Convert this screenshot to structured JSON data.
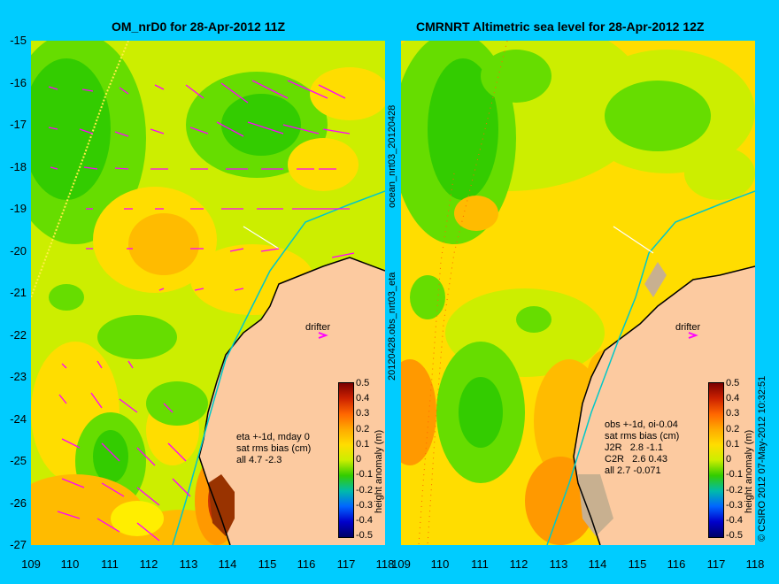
{
  "left_panel": {
    "title": "OM_nrD0 for 28-Apr-2012 11Z",
    "notes": [
      "eta +-1d, mday 0",
      "sat rms bias (cm)",
      "all 4.7 -2.3"
    ],
    "drifter_label": "drifter"
  },
  "right_panel": {
    "title": "CMRNRT Altimetric sea level  for 28-Apr-2012 12Z",
    "notes": [
      "obs +-1d, oi-0.04",
      "sat rms bias (cm)",
      "J2R   2.8 -1.1",
      "C2R   2.6 0.43",
      "all 2.7 -0.071"
    ],
    "drifter_label": "drifter"
  },
  "y_ticks": [
    "-15",
    "-16",
    "-17",
    "-18",
    "-19",
    "-20",
    "-21",
    "-22",
    "-23",
    "-24",
    "-25",
    "-26",
    "-27"
  ],
  "x_ticks_left": [
    "109",
    "110",
    "111",
    "112",
    "113",
    "114",
    "115",
    "116",
    "117",
    "118"
  ],
  "x_ticks_right": [
    "109",
    "110",
    "111",
    "112",
    "113",
    "114",
    "115",
    "116",
    "117",
    "118"
  ],
  "colorbar": {
    "title": "height anomaly (m)",
    "ticks": [
      "0.5",
      "0.4",
      "0.3",
      "0.2",
      "0.1",
      "0",
      "-0.1",
      "-0.2",
      "-0.3",
      "-0.4",
      "-0.5"
    ]
  },
  "side_labels": {
    "middle_top": "ocean_nrt03_20120428",
    "middle_bottom": "20120428.obs_nrt03_eta",
    "right": "© CSIRO 2012   07-May-2012 10:32:51"
  },
  "colors": {
    "background": "#00ccff",
    "land": "#fccaa0",
    "current_vectors": "#ff00ff",
    "coastline_track": "#00c8c8"
  }
}
